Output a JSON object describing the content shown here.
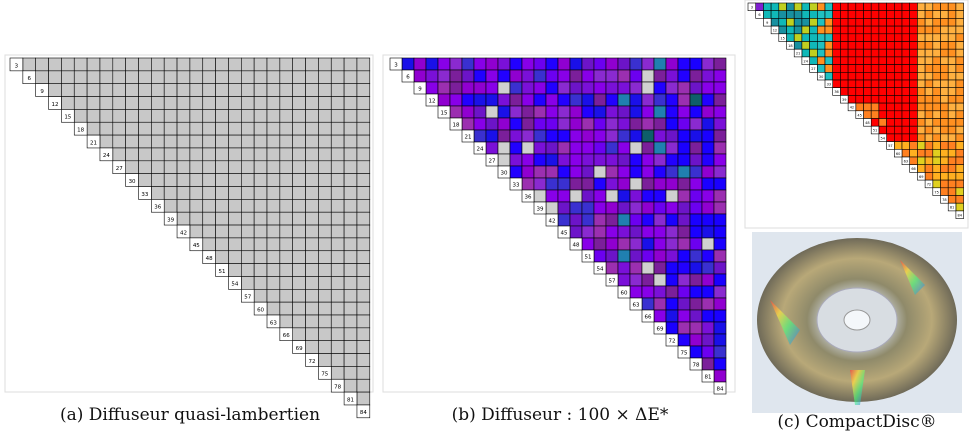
{
  "panels": [
    {
      "caption": "(a) Diffuseur quasi-lambertien"
    },
    {
      "caption": "(b) Diffuseur : 100 × ΔE*"
    },
    {
      "caption": "(c) CompactDisc®"
    }
  ],
  "diagonal_labels": [
    "3",
    "6",
    "9",
    "12",
    "15",
    "18",
    "21",
    "24",
    "27",
    "30",
    "33",
    "36",
    "39",
    "42",
    "45",
    "48",
    "51",
    "54",
    "57",
    "60",
    "63",
    "66",
    "69",
    "72",
    "75",
    "78",
    "81",
    "84"
  ]
}
